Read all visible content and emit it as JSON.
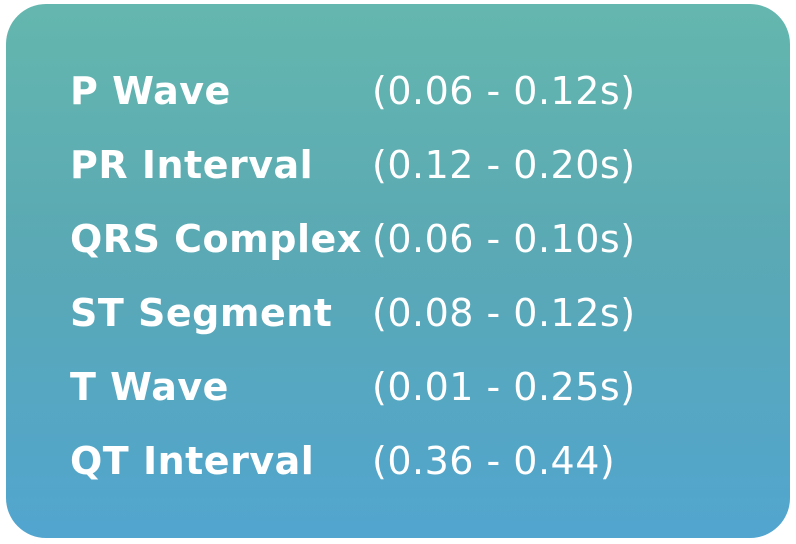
{
  "rows": [
    {
      "label": "P Wave",
      "range": "(0.06 - 0.12s)"
    },
    {
      "label": "PR Interval",
      "range": "(0.12 - 0.20s)"
    },
    {
      "label": "QRS Complex",
      "range": "(0.06 - 0.10s)"
    },
    {
      "label": "ST Segment",
      "range": "(0.08 - 0.12s)"
    },
    {
      "label": "T Wave",
      "range": "(0.01 - 0.25s)"
    },
    {
      "label": "QT Interval",
      "range": "(0.36 - 0.44)"
    }
  ],
  "colors": {
    "gradient_top": "#64b7ae",
    "gradient_bottom": "#52a5cf",
    "text": "#ffffff"
  }
}
